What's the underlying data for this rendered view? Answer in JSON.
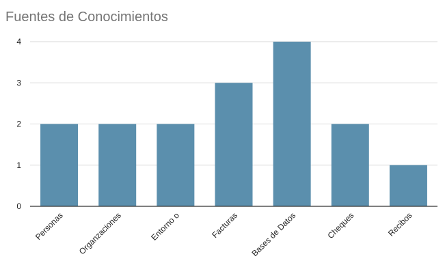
{
  "chart_data": {
    "type": "bar",
    "title": "Fuentes de Conocimientos",
    "categories": [
      "Personas",
      "Organzaciones",
      "Entorno o",
      "Facturas",
      "Bases de Datos",
      "Cheques",
      "Recibos"
    ],
    "values": [
      2,
      2,
      2,
      3,
      4,
      2,
      1
    ],
    "xlabel": "",
    "ylabel": "",
    "ylim": [
      0,
      4
    ],
    "yticks": [
      "0",
      "1",
      "2",
      "3",
      "4"
    ],
    "grid": true,
    "legend": "none",
    "colors": {
      "bar": "#5b8fad",
      "grid": "#d9d9d9",
      "axis": "#333333"
    }
  }
}
